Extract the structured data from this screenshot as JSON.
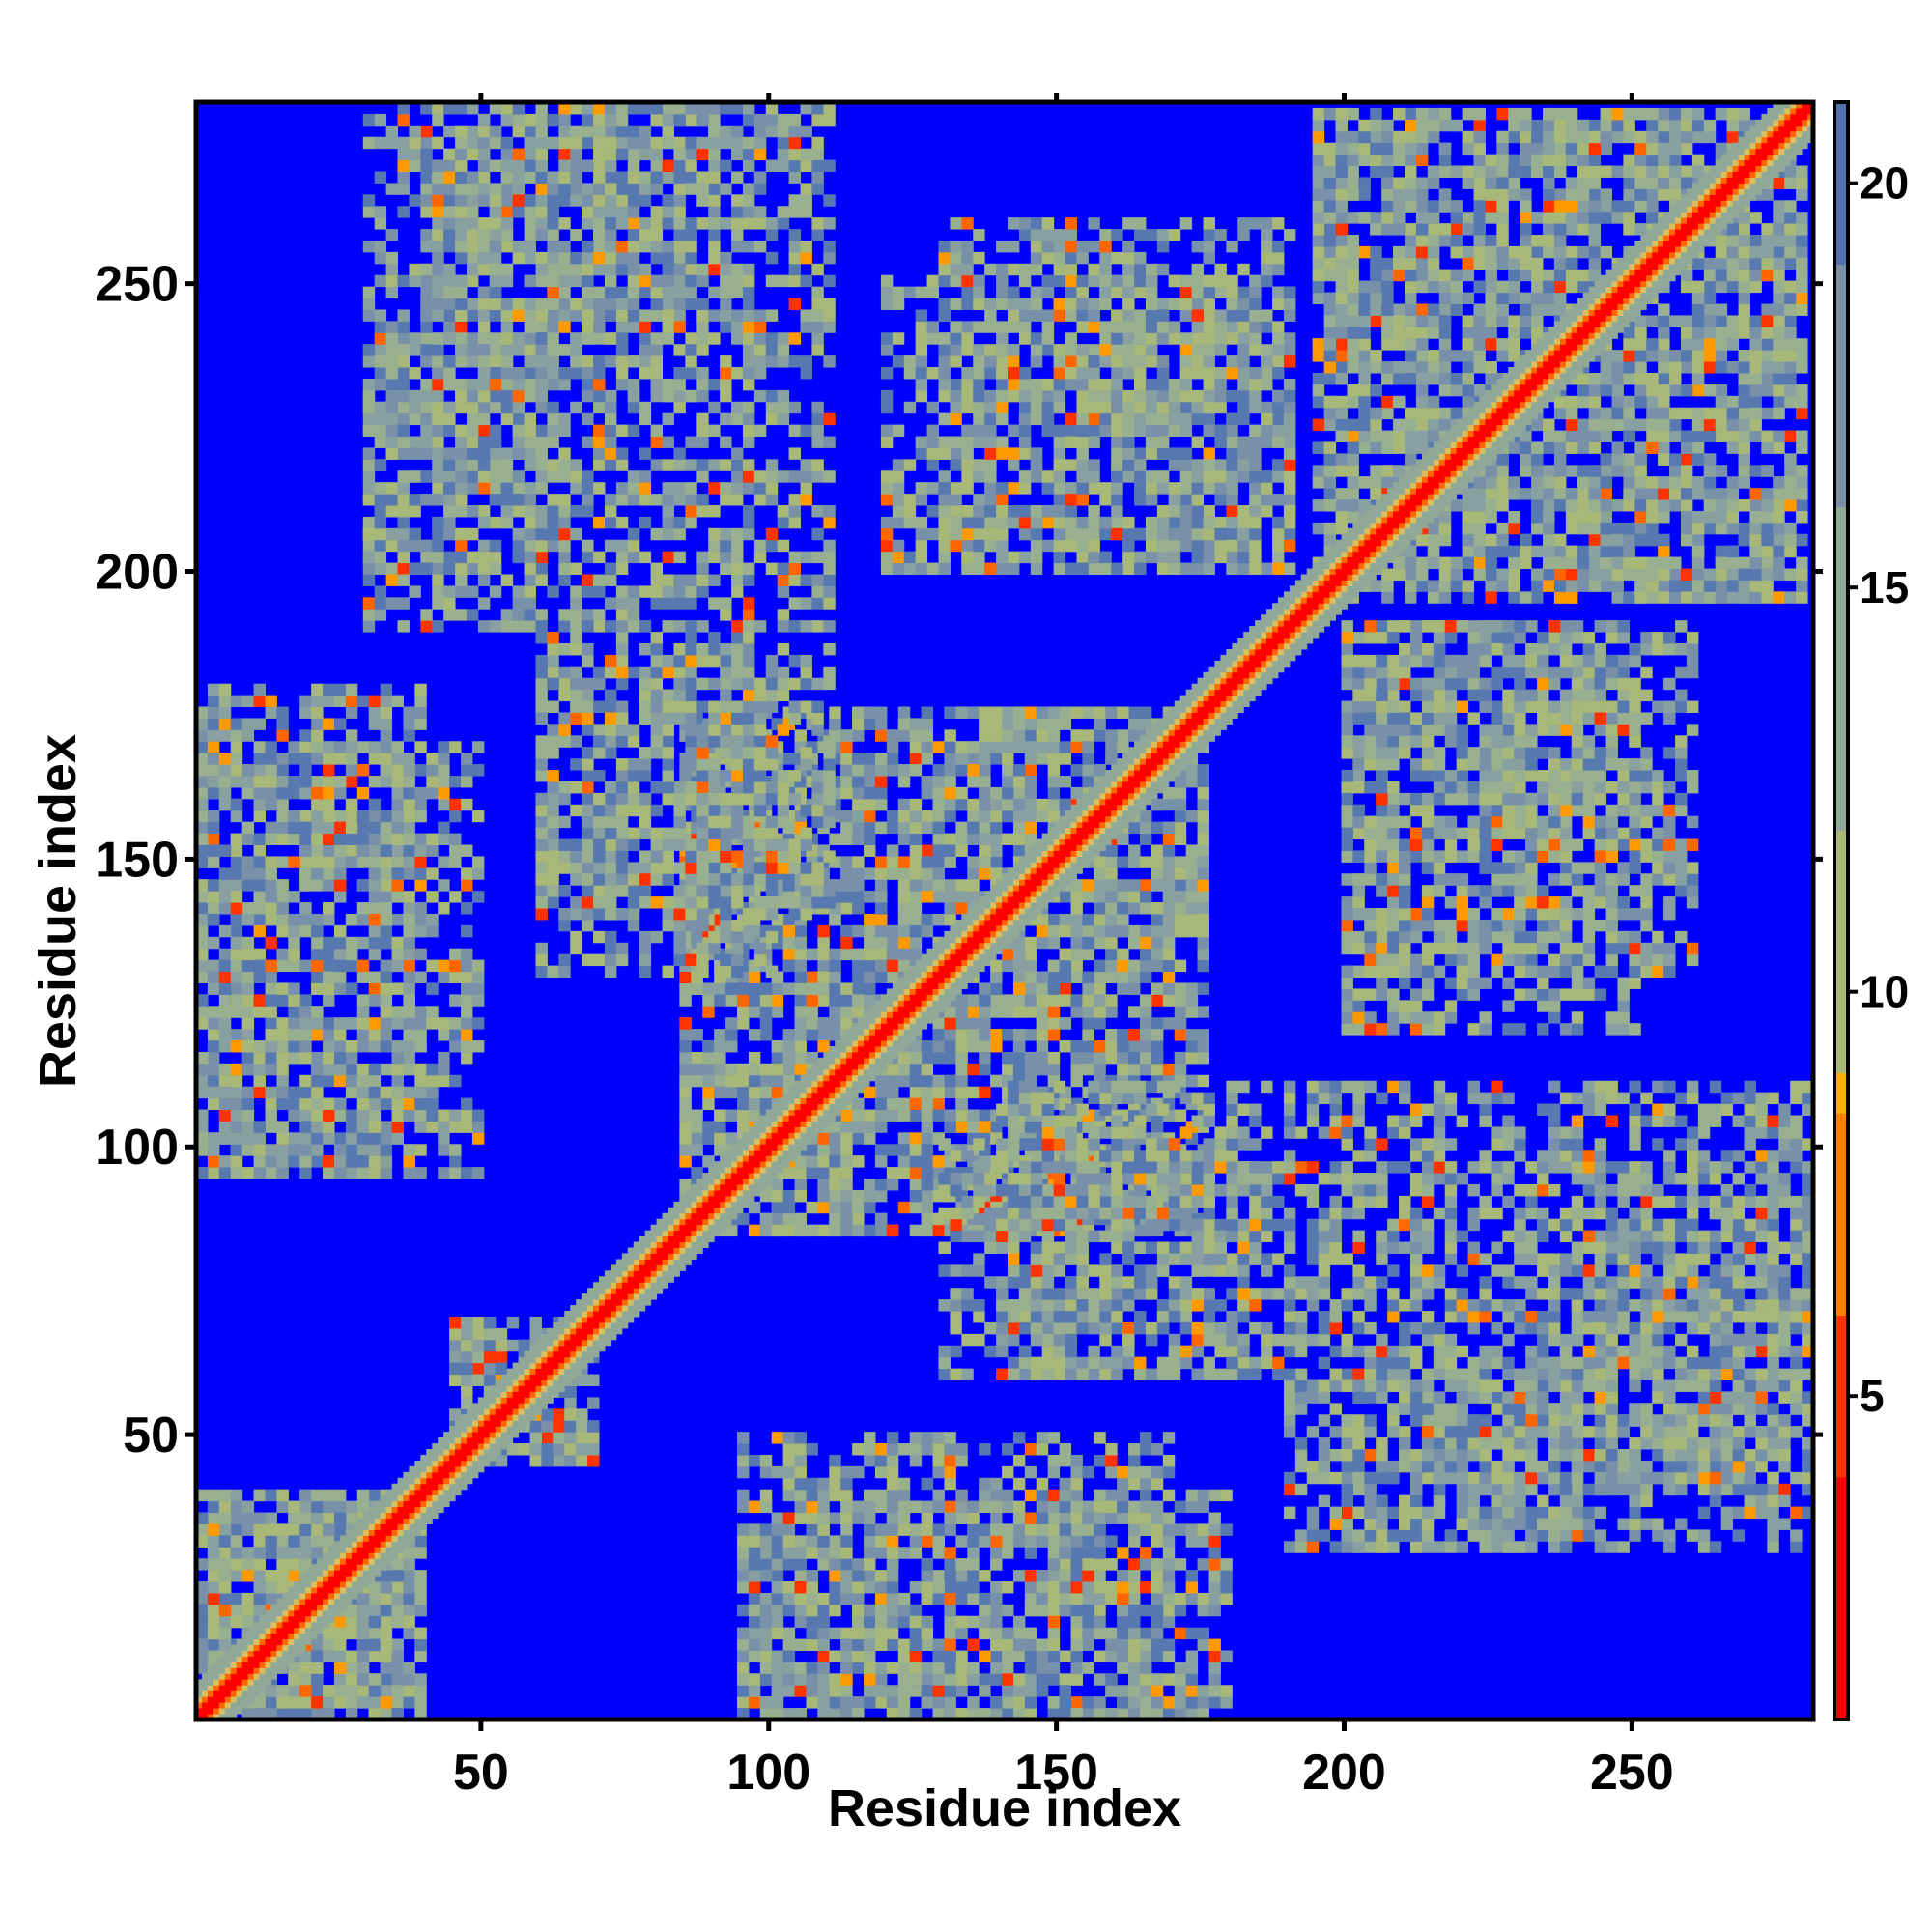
{
  "chart_data": {
    "type": "heatmap",
    "title": "",
    "xlabel": "Residue index",
    "ylabel": "Residue index",
    "n_residues": 281,
    "xlim": [
      1,
      281
    ],
    "ylim": [
      1,
      281
    ],
    "x_ticks": [
      50,
      100,
      150,
      200,
      250
    ],
    "x_tick_labels": [
      "50",
      "100",
      "150",
      "200",
      "250"
    ],
    "y_ticks": [
      50,
      100,
      150,
      200,
      250
    ],
    "y_tick_labels": [
      "50",
      "100",
      "150",
      "200",
      "250"
    ],
    "colorbar": {
      "range": [
        1,
        21
      ],
      "ticks": [
        5,
        10,
        15,
        20
      ],
      "tick_labels": [
        "5",
        "10",
        "15",
        "20"
      ],
      "colors": [
        {
          "value": 1,
          "color": "#ff0000"
        },
        {
          "value": 4,
          "color": "#ff3300"
        },
        {
          "value": 6,
          "color": "#ff7f00"
        },
        {
          "value": 8.5,
          "color": "#ffb000"
        },
        {
          "value": 9,
          "color": "#a8b878"
        },
        {
          "value": 12,
          "color": "#90a898"
        },
        {
          "value": 16,
          "color": "#7890a8"
        },
        {
          "value": 19,
          "color": "#5070b0"
        },
        {
          "value": 21,
          "color": "#0000ff"
        }
      ]
    },
    "background_color": "#0000ff",
    "diagonal_color": "#ff0000",
    "contact_regions": [
      {
        "x": [
          1,
          35
        ],
        "y": [
          1,
          35
        ],
        "kind": "diagonal-block"
      },
      {
        "x": [
          45,
          70
        ],
        "y": [
          45,
          70
        ],
        "kind": "diagonal-block"
      },
      {
        "x": [
          85,
          175
        ],
        "y": [
          85,
          175
        ],
        "kind": "diagonal-block"
      },
      {
        "x": [
          195,
          280
        ],
        "y": [
          195,
          280
        ],
        "kind": "diagonal-block"
      },
      {
        "x": [
          40,
          90
        ],
        "y": [
          230,
          280
        ],
        "kind": "off-diagonal"
      },
      {
        "x": [
          30,
          60
        ],
        "y": [
          200,
          240
        ],
        "kind": "off-diagonal"
      },
      {
        "x": [
          120,
          190
        ],
        "y": [
          200,
          250
        ],
        "kind": "off-diagonal"
      },
      {
        "x": [
          1,
          40
        ],
        "y": [
          95,
          180
        ],
        "kind": "off-diagonal"
      },
      {
        "x": [
          1,
          40
        ],
        "y": [
          1,
          40
        ],
        "kind": "off-diagonal"
      },
      {
        "x": [
          95,
          170
        ],
        "y": [
          1,
          50
        ],
        "kind": "off-diagonal"
      },
      {
        "x": [
          190,
          280
        ],
        "y": [
          30,
          110
        ],
        "kind": "off-diagonal"
      },
      {
        "x": [
          200,
          260
        ],
        "y": [
          130,
          190
        ],
        "kind": "off-diagonal"
      },
      {
        "x": [
          60,
          100
        ],
        "y": [
          130,
          185
        ],
        "kind": "off-diagonal"
      },
      {
        "x": [
          140,
          190
        ],
        "y": [
          60,
          110
        ],
        "kind": "off-diagonal"
      }
    ]
  }
}
